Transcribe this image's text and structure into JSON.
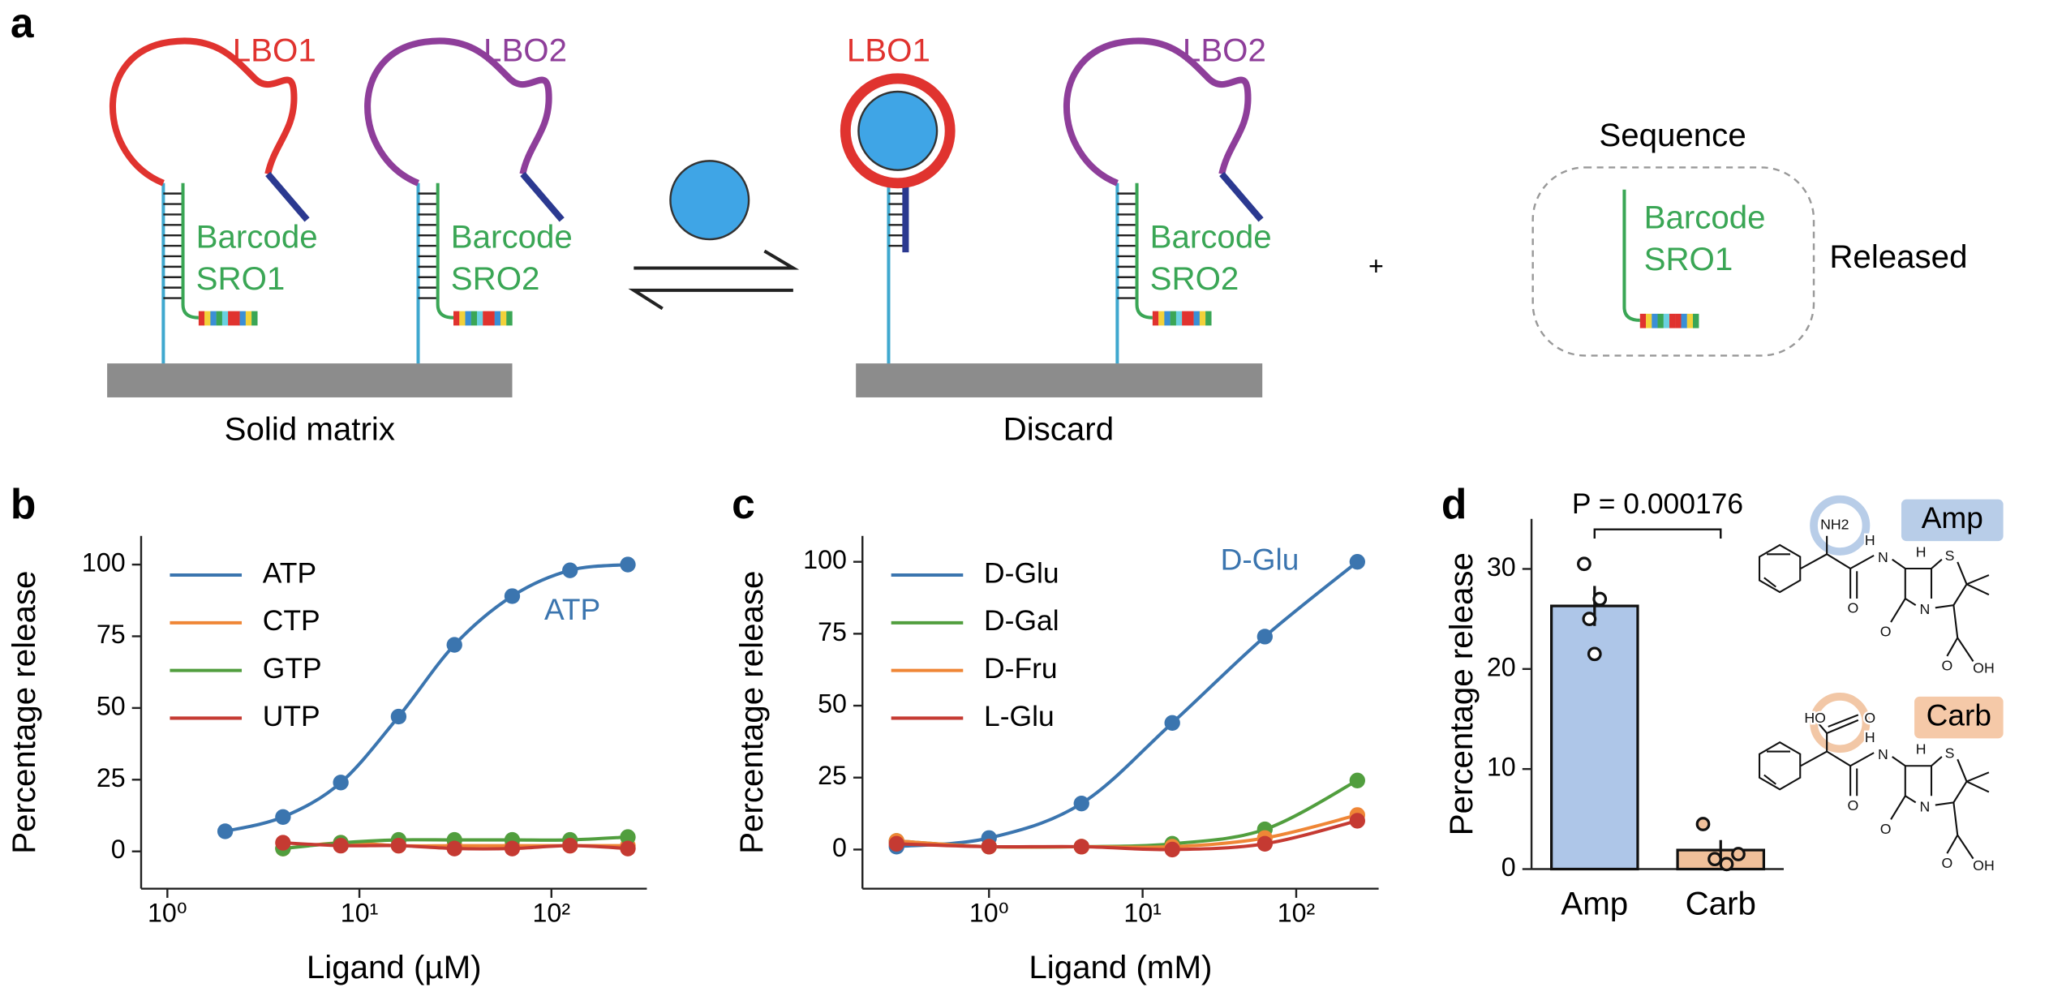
{
  "panel_labels": [
    "a",
    "b",
    "c",
    "d"
  ],
  "diagram": {
    "left": {
      "loop_1": "LBO1",
      "loop_2": "LBO2",
      "barcode_1": "Barcode",
      "sro_1": "SRO1",
      "barcode_2": "Barcode",
      "sro_2": "SRO2",
      "matrix": "Solid matrix"
    },
    "right": {
      "loop_1": "LBO1",
      "loop_2": "LBO2",
      "barcode_2": "Barcode",
      "sro_2": "SRO2",
      "matrix": "Discard"
    },
    "plus": "+",
    "released": {
      "title": "Sequence",
      "barcode": "Barcode",
      "sro": "SRO1",
      "label": "Released"
    }
  },
  "structures": [
    {
      "name": "Amp",
      "group": [
        "NH2"
      ],
      "atoms": [
        "O",
        "H",
        "N",
        "H",
        "S",
        "N",
        "O",
        "O",
        "OH"
      ]
    },
    {
      "name": "Carb",
      "group": [
        "HO",
        "O"
      ],
      "atoms": [
        "O",
        "H",
        "N",
        "H",
        "S",
        "N",
        "O",
        "O",
        "OH"
      ]
    }
  ],
  "chart_data": [
    {
      "type": "line",
      "x_label": "Ligand (µM)",
      "y_label": "Percentage release",
      "log_x": true,
      "xlim": [
        0.73,
        314
      ],
      "ylim": [
        -13,
        110
      ],
      "xticks": [
        {
          "value": 1,
          "label": "10⁰"
        },
        {
          "value": 10,
          "label": "10¹"
        },
        {
          "value": 100,
          "label": "10²"
        }
      ],
      "yticks": [
        0,
        25,
        50,
        75,
        100
      ],
      "legend": "upper left",
      "annotation": "ATP",
      "series": [
        {
          "name": "ATP",
          "color": "#3b75af",
          "x": [
            2,
            4,
            8,
            16,
            31.25,
            62.5,
            125,
            250
          ],
          "values": [
            7,
            12,
            24,
            47,
            72,
            89,
            98,
            100
          ]
        },
        {
          "name": "CTP",
          "color": "#ef8636",
          "x": [
            4,
            8,
            16,
            31.25,
            62.5,
            125,
            250
          ],
          "values": [
            1,
            3,
            2,
            2,
            2,
            2,
            2
          ]
        },
        {
          "name": "GTP",
          "color": "#519e3e",
          "x": [
            4,
            8,
            16,
            31.25,
            62.5,
            125,
            250
          ],
          "values": [
            1,
            3,
            4,
            4,
            4,
            4,
            5
          ]
        },
        {
          "name": "UTP",
          "color": "#c53a32",
          "x": [
            4,
            8,
            16,
            31.25,
            62.5,
            125,
            250
          ],
          "values": [
            3,
            2,
            2,
            1,
            1,
            2,
            1
          ]
        }
      ]
    },
    {
      "type": "line",
      "x_label": "Ligand (mM)",
      "y_label": "Percentage release",
      "log_x": true,
      "xlim": [
        0.15,
        344
      ],
      "ylim": [
        -13.6,
        109
      ],
      "xticks": [
        {
          "value": 1,
          "label": "10⁰"
        },
        {
          "value": 10,
          "label": "10¹"
        },
        {
          "value": 100,
          "label": "10²"
        }
      ],
      "yticks": [
        0,
        25,
        50,
        75,
        100
      ],
      "legend": "upper left",
      "annotation": "D-Glu",
      "series": [
        {
          "name": "D-Glu",
          "color": "#3b75af",
          "x": [
            0.25,
            1,
            4,
            15.6,
            62.5,
            250
          ],
          "values": [
            1,
            4,
            16,
            44,
            74,
            100
          ]
        },
        {
          "name": "D-Gal",
          "color": "#519e3e",
          "x": [
            0.25,
            1,
            4,
            15.6,
            62.5,
            250
          ],
          "values": [
            3,
            1,
            1,
            2,
            7,
            24
          ]
        },
        {
          "name": "D-Fru",
          "color": "#ef8636",
          "x": [
            0.25,
            1,
            4,
            15.6,
            62.5,
            250
          ],
          "values": [
            3,
            1,
            1,
            1,
            4,
            12
          ]
        },
        {
          "name": "L-Glu",
          "color": "#c53a32",
          "x": [
            0.25,
            1,
            4,
            15.6,
            62.5,
            250
          ],
          "values": [
            2,
            1,
            1,
            0,
            2,
            10
          ]
        }
      ]
    },
    {
      "type": "bar",
      "y_label": "Percentage release",
      "categories": [
        "Amp",
        "Carb"
      ],
      "values": [
        26.3,
        1.9
      ],
      "errors": [
        2,
        1
      ],
      "points": [
        [
          30.5,
          27,
          25,
          21.5
        ],
        [
          4.5,
          1,
          0.5,
          1.5
        ]
      ],
      "colors": [
        "#aec6e8",
        "#f0c09a"
      ],
      "ylim": [
        0,
        35
      ],
      "yticks": [
        0,
        10,
        20,
        30
      ],
      "annotation": "P = 0.000176"
    }
  ]
}
